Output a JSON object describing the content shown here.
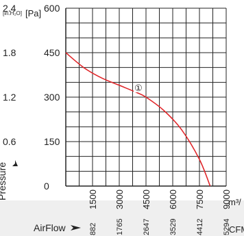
{
  "chart_data": {
    "type": "line",
    "title": "",
    "units": {
      "pressure_inh2o": "[in.H₂O]",
      "pressure_pa": "[Pa]",
      "airflow_m3h": "m³/",
      "airflow_cfm": "CFM"
    },
    "ylabel": "Pressure",
    "xlabel": "AirFlow",
    "ylim": [
      0,
      600
    ],
    "xlim": [
      0,
      9000
    ],
    "y_ticks_pa": [
      "0",
      "150",
      "300",
      "450",
      "600"
    ],
    "y_ticks_inh2o": [
      "0.6",
      "1.2",
      "1.8",
      "2.4"
    ],
    "x_ticks_m3h": [
      "1500",
      "3000",
      "4500",
      "6000",
      "7500",
      "9000"
    ],
    "x_ticks_cfm": [
      "882",
      "1765",
      "2647",
      "3529",
      "4412",
      "5294"
    ],
    "grid": true,
    "series": [
      {
        "marker": "①",
        "color": "#e0262a",
        "points": [
          {
            "x": 0,
            "y": 450
          },
          {
            "x": 1000,
            "y": 400
          },
          {
            "x": 2000,
            "y": 365
          },
          {
            "x": 3000,
            "y": 340
          },
          {
            "x": 4000,
            "y": 315
          },
          {
            "x": 4500,
            "y": 300
          },
          {
            "x": 5500,
            "y": 255
          },
          {
            "x": 6500,
            "y": 190
          },
          {
            "x": 7500,
            "y": 90
          },
          {
            "x": 8100,
            "y": 0
          }
        ],
        "marker_at": {
          "x": 4000,
          "y": 330
        }
      }
    ]
  }
}
